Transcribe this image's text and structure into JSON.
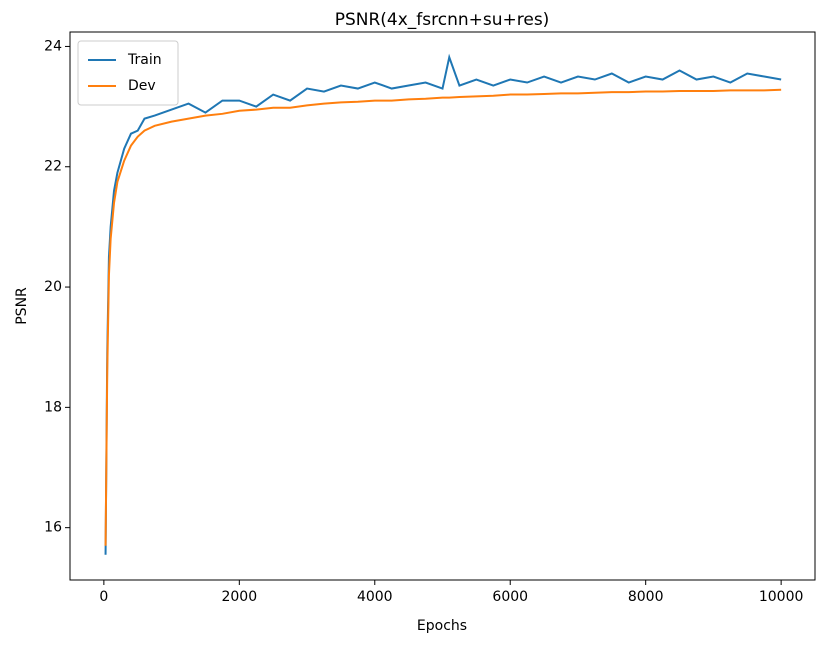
{
  "chart_data": {
    "type": "line",
    "title": "PSNR(4x_fsrcnn+su+res)",
    "x_label": "Epochs",
    "y_label": "PSNR",
    "x": [
      25,
      50,
      75,
      100,
      150,
      200,
      300,
      400,
      500,
      600,
      750,
      1000,
      1250,
      1500,
      1750,
      2000,
      2250,
      2500,
      2750,
      3000,
      3250,
      3500,
      3750,
      4000,
      4250,
      4500,
      4750,
      5000,
      5100,
      5250,
      5500,
      5750,
      6000,
      6250,
      6500,
      6750,
      7000,
      7250,
      7500,
      7750,
      8000,
      8250,
      8500,
      8750,
      9000,
      9250,
      9500,
      9750,
      10000
    ],
    "series": [
      {
        "name": "Train",
        "color": "#1f77b4",
        "values": [
          15.55,
          18.9,
          20.5,
          21.0,
          21.6,
          21.9,
          22.3,
          22.55,
          22.6,
          22.8,
          22.85,
          22.95,
          23.05,
          22.9,
          23.1,
          23.1,
          23.0,
          23.2,
          23.1,
          23.3,
          23.25,
          23.35,
          23.3,
          23.4,
          23.3,
          23.35,
          23.4,
          23.3,
          23.82,
          23.35,
          23.45,
          23.35,
          23.45,
          23.4,
          23.5,
          23.4,
          23.5,
          23.45,
          23.55,
          23.4,
          23.5,
          23.45,
          23.6,
          23.45,
          23.5,
          23.4,
          23.55,
          23.5,
          23.45
        ]
      },
      {
        "name": "Dev",
        "color": "#ff7f0e",
        "values": [
          15.7,
          18.6,
          20.2,
          20.8,
          21.4,
          21.75,
          22.1,
          22.35,
          22.5,
          22.6,
          22.68,
          22.75,
          22.8,
          22.85,
          22.88,
          22.93,
          22.95,
          22.98,
          22.98,
          23.02,
          23.05,
          23.07,
          23.08,
          23.1,
          23.1,
          23.12,
          23.13,
          23.15,
          23.15,
          23.16,
          23.17,
          23.18,
          23.2,
          23.2,
          23.21,
          23.22,
          23.22,
          23.23,
          23.24,
          23.24,
          23.25,
          23.25,
          23.26,
          23.26,
          23.26,
          23.27,
          23.27,
          23.27,
          23.28
        ]
      }
    ],
    "xlim": [
      -500,
      10500
    ],
    "ylim": [
      15.13,
      24.24
    ],
    "xticks": [
      0,
      2000,
      4000,
      6000,
      8000,
      10000
    ],
    "yticks": [
      16,
      18,
      20,
      22,
      24
    ],
    "grid": false,
    "legend": "upper left"
  }
}
